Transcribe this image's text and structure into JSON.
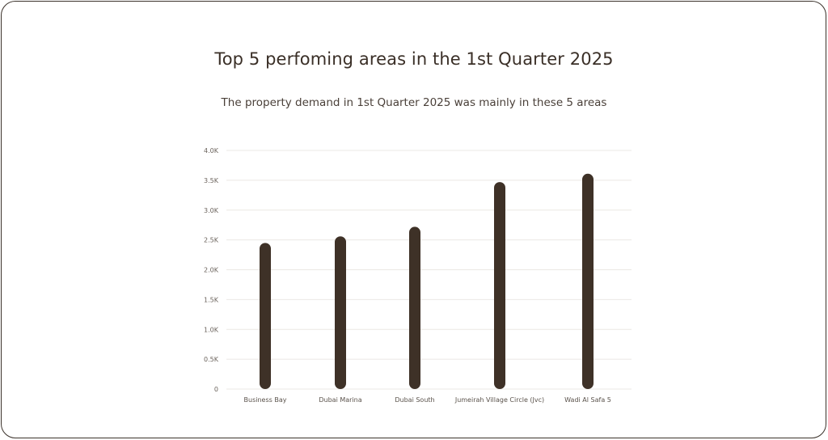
{
  "colors": {
    "bar": "#3e3127",
    "grid": "#ebe8e4",
    "border": "#3b322b",
    "text": "#3a2f27"
  },
  "chart_data": {
    "type": "bar",
    "title": "Top 5 perfoming areas in the 1st Quarter 2025",
    "subtitle": "The property demand in 1st Quarter 2025 was mainly in these 5 areas",
    "categories": [
      "Business Bay",
      "Dubai Marina",
      "Dubai South",
      "Jumeirah Village Circle (Jvc)",
      "Wadi Al Safa 5"
    ],
    "values": [
      2450,
      2560,
      2720,
      3470,
      3610
    ],
    "ylim": [
      0,
      4000
    ],
    "yticks": [
      {
        "value": 0,
        "label": "0"
      },
      {
        "value": 500,
        "label": "0.5K"
      },
      {
        "value": 1000,
        "label": "1.0K"
      },
      {
        "value": 1500,
        "label": "1.5K"
      },
      {
        "value": 2000,
        "label": "2.0K"
      },
      {
        "value": 2500,
        "label": "2.5K"
      },
      {
        "value": 3000,
        "label": "3.0K"
      },
      {
        "value": 3500,
        "label": "3.5K"
      },
      {
        "value": 4000,
        "label": "4.0K"
      }
    ],
    "grid": true,
    "legend": "none"
  }
}
